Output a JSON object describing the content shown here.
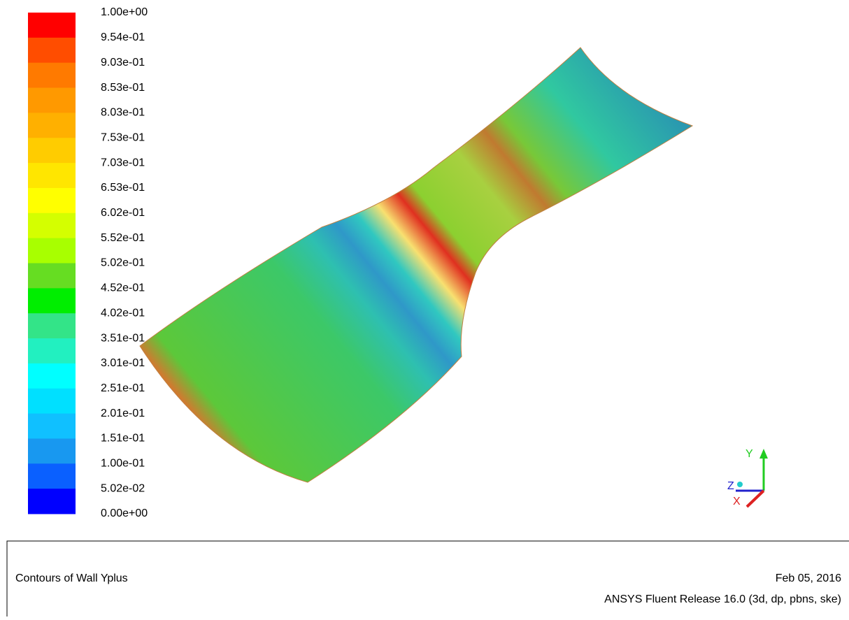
{
  "colorbar": {
    "labels": [
      "1.00e+00",
      "9.54e-01",
      "9.03e-01",
      "8.53e-01",
      "8.03e-01",
      "7.53e-01",
      "7.03e-01",
      "6.53e-01",
      "6.02e-01",
      "5.52e-01",
      "5.02e-01",
      "4.52e-01",
      "4.02e-01",
      "3.51e-01",
      "3.01e-01",
      "2.51e-01",
      "2.01e-01",
      "1.51e-01",
      "1.00e-01",
      "5.02e-02",
      "0.00e+00"
    ]
  },
  "caption": {
    "title": "Contours of Wall Yplus",
    "date": "Feb 05, 2016",
    "release": "ANSYS Fluent Release 16.0 (3d, dp, pbns, ske)"
  },
  "axes": {
    "y": "Y",
    "z": "Z",
    "x": "X"
  }
}
